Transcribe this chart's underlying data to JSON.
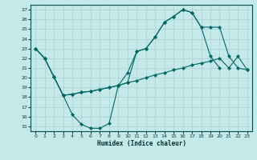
{
  "xlabel": "Humidex (Indice chaleur)",
  "bg_color": "#c5e8e8",
  "line_color": "#006868",
  "grid_color": "#a8d0d0",
  "xlim": [
    -0.5,
    23.5
  ],
  "ylim": [
    14.5,
    27.5
  ],
  "xticks": [
    0,
    1,
    2,
    3,
    4,
    5,
    6,
    7,
    8,
    9,
    10,
    11,
    12,
    13,
    14,
    15,
    16,
    17,
    18,
    19,
    20,
    21,
    22,
    23
  ],
  "yticks": [
    15,
    16,
    17,
    18,
    19,
    20,
    21,
    22,
    23,
    24,
    25,
    26,
    27
  ],
  "line_dip_x": [
    0,
    1,
    2,
    3,
    4,
    5,
    6,
    7,
    8,
    9,
    10,
    11,
    12,
    13,
    14,
    15,
    16,
    17,
    18,
    19,
    20
  ],
  "line_dip_y": [
    23,
    22,
    20.1,
    18.2,
    16.2,
    15.2,
    14.8,
    14.8,
    15.3,
    19.2,
    20.5,
    22.7,
    23.0,
    24.2,
    25.7,
    26.3,
    27.0,
    26.7,
    25.2,
    22.2,
    21.0
  ],
  "line_flat_x": [
    0,
    1,
    2,
    3,
    4,
    5,
    6,
    7,
    8,
    9,
    10,
    11,
    12,
    13,
    14,
    15,
    16,
    17,
    18,
    19,
    20,
    21,
    22,
    23
  ],
  "line_flat_y": [
    23,
    22,
    20.1,
    18.2,
    18.3,
    18.5,
    18.6,
    18.8,
    19.0,
    19.2,
    19.5,
    19.7,
    20.0,
    20.3,
    20.5,
    20.8,
    21.0,
    21.3,
    21.5,
    21.7,
    22.0,
    21.0,
    22.2,
    20.8
  ],
  "line_high_x": [
    0,
    1,
    2,
    3,
    4,
    5,
    6,
    7,
    8,
    9,
    10,
    11,
    12,
    13,
    14,
    15,
    16,
    17,
    18,
    19,
    20,
    21,
    22,
    23
  ],
  "line_high_y": [
    23,
    22,
    20.1,
    18.2,
    18.3,
    18.5,
    18.6,
    18.8,
    19.0,
    19.2,
    19.5,
    22.7,
    23.0,
    24.2,
    25.7,
    26.3,
    27.0,
    26.7,
    25.2,
    25.2,
    25.2,
    22.2,
    21.0,
    20.8
  ]
}
